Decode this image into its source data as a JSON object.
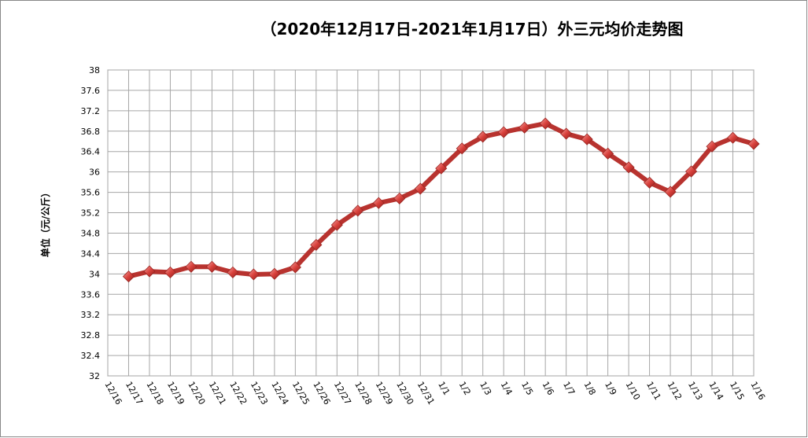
{
  "chart_data": {
    "type": "line",
    "title": "（2020年12月17日-2021年1月17日）外三元均价走势图",
    "y_label": "单位（元/公斤）",
    "categories": [
      "12/16",
      "12/17",
      "12/18",
      "12/19",
      "12/20",
      "12/21",
      "12/22",
      "12/23",
      "12/24",
      "12/25",
      "12/26",
      "12/27",
      "12/28",
      "12/29",
      "12/30",
      "12/31",
      "1/1",
      "1/2",
      "1/3",
      "1/4",
      "1/5",
      "1/6",
      "1/7",
      "1/8",
      "1/9",
      "1/10",
      "1/11",
      "1/12",
      "1/13",
      "1/14",
      "1/15",
      "1/16"
    ],
    "series": [
      {
        "name": "外三元均价",
        "color": "#b8332f",
        "values": [
          null,
          33.95,
          34.05,
          34.03,
          34.14,
          34.14,
          34.03,
          33.99,
          34.0,
          34.13,
          34.57,
          34.96,
          35.24,
          35.39,
          35.48,
          35.67,
          36.07,
          36.46,
          36.69,
          36.78,
          36.87,
          36.95,
          36.75,
          36.64,
          36.36,
          36.09,
          35.79,
          35.61,
          36.01,
          36.5,
          36.67,
          36.55
        ]
      }
    ],
    "ylim": [
      32,
      38
    ],
    "yticks": [
      32,
      32.4,
      32.8,
      33.2,
      33.6,
      34,
      34.4,
      34.8,
      35.2,
      35.6,
      36,
      36.4,
      36.8,
      37.2,
      37.6,
      38
    ],
    "grid": true
  }
}
